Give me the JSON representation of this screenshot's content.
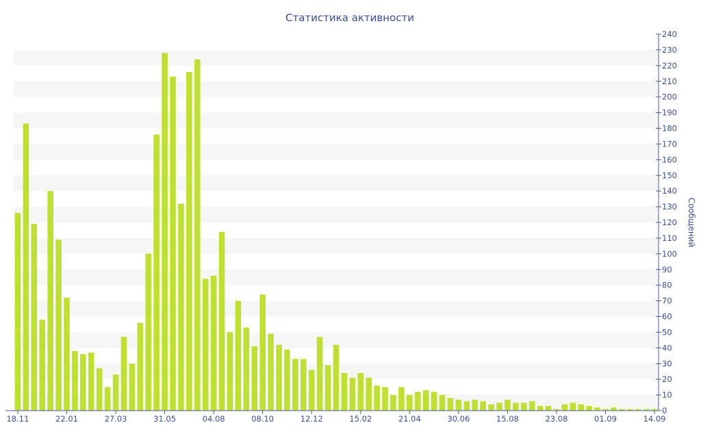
{
  "chart_data": {
    "type": "bar",
    "title": "Статистика активности",
    "ylabel": "Сообщений",
    "xlabel": "",
    "ylim": [
      0,
      240
    ],
    "y_ticks": [
      0,
      10,
      20,
      30,
      40,
      50,
      60,
      70,
      80,
      90,
      100,
      110,
      120,
      130,
      140,
      150,
      160,
      170,
      180,
      190,
      200,
      210,
      220,
      230,
      240
    ],
    "y_axis_position": "right",
    "grid": "alternating horizontal bands",
    "legend": "none",
    "bar_color": "#bde033",
    "text_color": "#3a4f8c",
    "x_tick_labels": [
      {
        "index": 0,
        "label": "18.11"
      },
      {
        "index": 6,
        "label": "22.01"
      },
      {
        "index": 12,
        "label": "27.03"
      },
      {
        "index": 18,
        "label": "31.05"
      },
      {
        "index": 24,
        "label": "04.08"
      },
      {
        "index": 30,
        "label": "08.10"
      },
      {
        "index": 36,
        "label": "12.12"
      },
      {
        "index": 42,
        "label": "15.02"
      },
      {
        "index": 48,
        "label": "21.04"
      },
      {
        "index": 54,
        "label": "30.06"
      },
      {
        "index": 60,
        "label": "15.08"
      },
      {
        "index": 66,
        "label": "23.08"
      },
      {
        "index": 72,
        "label": "01.09"
      },
      {
        "index": 78,
        "label": "14.09"
      }
    ],
    "values": [
      126,
      183,
      119,
      58,
      140,
      109,
      72,
      38,
      36,
      37,
      27,
      15,
      23,
      47,
      30,
      56,
      100,
      176,
      228,
      213,
      132,
      216,
      224,
      84,
      86,
      114,
      50,
      70,
      53,
      41,
      74,
      49,
      42,
      39,
      33,
      33,
      26,
      47,
      29,
      42,
      24,
      21,
      24,
      21,
      16,
      15,
      10,
      15,
      10,
      12,
      13,
      12,
      10,
      8,
      7,
      6,
      7,
      6,
      4,
      5,
      7,
      5,
      5,
      6,
      3,
      3,
      1,
      4,
      5,
      4,
      3,
      2,
      1,
      2,
      1,
      1,
      1,
      1,
      1
    ]
  }
}
